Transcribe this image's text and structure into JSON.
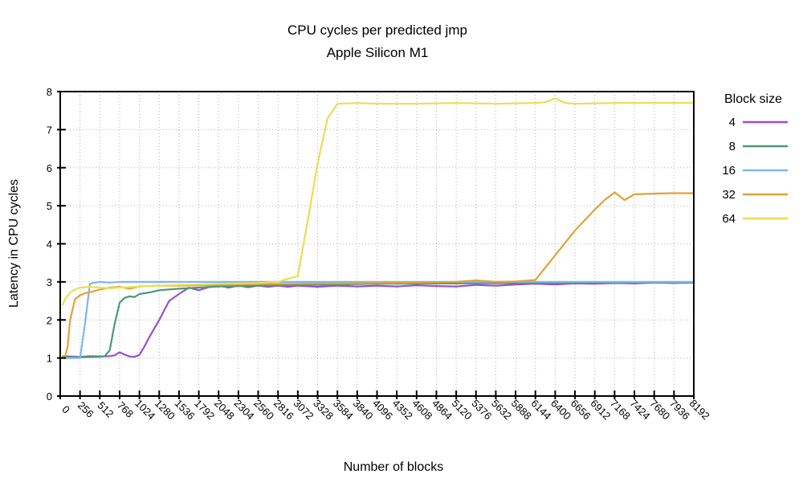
{
  "title": {
    "line1": "CPU cycles per predicted jmp",
    "line2": "Apple Silicon M1"
  },
  "axes": {
    "x": {
      "label": "Number of blocks",
      "min": 0,
      "max": 8192,
      "ticks": [
        0,
        256,
        512,
        768,
        1024,
        1280,
        1536,
        1792,
        2048,
        2304,
        2560,
        2816,
        3072,
        3328,
        3584,
        3840,
        4096,
        4352,
        4608,
        4864,
        5120,
        5376,
        5632,
        5888,
        6144,
        6400,
        6656,
        6912,
        7168,
        7424,
        7680,
        7936,
        8192
      ]
    },
    "y": {
      "label": "Latency in CPU cycles",
      "min": 0,
      "max": 8,
      "ticks": [
        0,
        1,
        2,
        3,
        4,
        5,
        6,
        7,
        8
      ]
    }
  },
  "legend": {
    "title": "Block size",
    "entries": [
      {
        "label": "4",
        "color": "#9a4fd0"
      },
      {
        "label": "8",
        "color": "#479b77"
      },
      {
        "label": "16",
        "color": "#7db7ea"
      },
      {
        "label": "32",
        "color": "#e3a235"
      },
      {
        "label": "64",
        "color": "#eedc55"
      }
    ]
  },
  "colors": {
    "grid": "#b0b0b0",
    "border": "#000000",
    "background": "#ffffff"
  },
  "chart_data": {
    "type": "line",
    "title": "CPU cycles per predicted jmp",
    "subtitle": "Apple Silicon M1",
    "xlabel": "Number of blocks",
    "ylabel": "Latency in CPU cycles",
    "xlim": [
      0,
      8192
    ],
    "ylim": [
      0,
      8
    ],
    "grid": true,
    "legend_position": "outside-right",
    "legend_title": "Block size",
    "series": [
      {
        "name": "4",
        "color": "#9a4fd0",
        "points": [
          [
            32,
            1.05
          ],
          [
            128,
            1.04
          ],
          [
            256,
            1.03
          ],
          [
            384,
            1.05
          ],
          [
            512,
            1.04
          ],
          [
            640,
            1.05
          ],
          [
            704,
            1.07
          ],
          [
            768,
            1.15
          ],
          [
            832,
            1.09
          ],
          [
            896,
            1.04
          ],
          [
            960,
            1.03
          ],
          [
            1024,
            1.08
          ],
          [
            1088,
            1.3
          ],
          [
            1152,
            1.55
          ],
          [
            1280,
            2.0
          ],
          [
            1408,
            2.5
          ],
          [
            1536,
            2.68
          ],
          [
            1664,
            2.85
          ],
          [
            1792,
            2.78
          ],
          [
            1920,
            2.86
          ],
          [
            2048,
            2.9
          ],
          [
            2176,
            2.85
          ],
          [
            2304,
            2.9
          ],
          [
            2432,
            2.86
          ],
          [
            2560,
            2.9
          ],
          [
            2688,
            2.87
          ],
          [
            2816,
            2.9
          ],
          [
            2944,
            2.87
          ],
          [
            3072,
            2.9
          ],
          [
            3328,
            2.87
          ],
          [
            3584,
            2.9
          ],
          [
            3840,
            2.88
          ],
          [
            4096,
            2.9
          ],
          [
            4352,
            2.88
          ],
          [
            4608,
            2.91
          ],
          [
            4864,
            2.89
          ],
          [
            5120,
            2.88
          ],
          [
            5376,
            2.92
          ],
          [
            5632,
            2.9
          ],
          [
            5888,
            2.93
          ],
          [
            6144,
            2.95
          ],
          [
            6400,
            2.93
          ],
          [
            6656,
            2.96
          ],
          [
            6912,
            2.95
          ],
          [
            7168,
            2.97
          ],
          [
            7424,
            2.96
          ],
          [
            7680,
            2.98
          ],
          [
            7936,
            2.97
          ],
          [
            8192,
            2.98
          ]
        ]
      },
      {
        "name": "8",
        "color": "#479b77",
        "points": [
          [
            32,
            1.02
          ],
          [
            256,
            1.02
          ],
          [
            512,
            1.03
          ],
          [
            576,
            1.05
          ],
          [
            640,
            1.2
          ],
          [
            704,
            1.9
          ],
          [
            768,
            2.45
          ],
          [
            832,
            2.58
          ],
          [
            896,
            2.62
          ],
          [
            960,
            2.6
          ],
          [
            1024,
            2.68
          ],
          [
            1152,
            2.72
          ],
          [
            1280,
            2.78
          ],
          [
            1536,
            2.82
          ],
          [
            1792,
            2.85
          ],
          [
            2048,
            2.88
          ],
          [
            2560,
            2.9
          ],
          [
            3072,
            2.92
          ],
          [
            3584,
            2.93
          ],
          [
            4096,
            2.95
          ],
          [
            5120,
            2.96
          ],
          [
            6144,
            2.97
          ],
          [
            7168,
            2.98
          ],
          [
            8192,
            2.98
          ]
        ]
      },
      {
        "name": "16",
        "color": "#7db7ea",
        "points": [
          [
            32,
            1.0
          ],
          [
            128,
            1.0
          ],
          [
            256,
            1.0
          ],
          [
            320,
            1.9
          ],
          [
            384,
            2.95
          ],
          [
            448,
            2.98
          ],
          [
            512,
            3.0
          ],
          [
            640,
            2.98
          ],
          [
            768,
            3.0
          ],
          [
            1024,
            3.0
          ],
          [
            1536,
            3.0
          ],
          [
            2048,
            3.0
          ],
          [
            3072,
            3.0
          ],
          [
            4096,
            3.0
          ],
          [
            5120,
            3.0
          ],
          [
            6144,
            3.0
          ],
          [
            7168,
            3.0
          ],
          [
            8192,
            3.0
          ]
        ]
      },
      {
        "name": "32",
        "color": "#e3a235",
        "points": [
          [
            32,
            1.05
          ],
          [
            64,
            1.05
          ],
          [
            96,
            1.3
          ],
          [
            128,
            2.0
          ],
          [
            192,
            2.55
          ],
          [
            256,
            2.65
          ],
          [
            320,
            2.7
          ],
          [
            384,
            2.73
          ],
          [
            512,
            2.8
          ],
          [
            640,
            2.85
          ],
          [
            768,
            2.87
          ],
          [
            896,
            2.82
          ],
          [
            1024,
            2.88
          ],
          [
            1280,
            2.9
          ],
          [
            1536,
            2.9
          ],
          [
            2048,
            2.92
          ],
          [
            2560,
            2.94
          ],
          [
            3072,
            2.95
          ],
          [
            3584,
            2.96
          ],
          [
            4096,
            2.97
          ],
          [
            4608,
            2.98
          ],
          [
            5120,
            3.0
          ],
          [
            5376,
            3.04
          ],
          [
            5632,
            3.0
          ],
          [
            5888,
            3.01
          ],
          [
            6144,
            3.05
          ],
          [
            6400,
            3.7
          ],
          [
            6656,
            4.35
          ],
          [
            6912,
            4.9
          ],
          [
            7040,
            5.15
          ],
          [
            7168,
            5.35
          ],
          [
            7296,
            5.15
          ],
          [
            7424,
            5.3
          ],
          [
            7680,
            5.32
          ],
          [
            7936,
            5.33
          ],
          [
            8192,
            5.33
          ]
        ]
      },
      {
        "name": "64",
        "color": "#eedc55",
        "points": [
          [
            32,
            2.4
          ],
          [
            64,
            2.55
          ],
          [
            128,
            2.72
          ],
          [
            192,
            2.8
          ],
          [
            256,
            2.85
          ],
          [
            384,
            2.87
          ],
          [
            512,
            2.85
          ],
          [
            640,
            2.83
          ],
          [
            768,
            2.85
          ],
          [
            1024,
            2.88
          ],
          [
            1536,
            2.92
          ],
          [
            2048,
            2.95
          ],
          [
            2560,
            2.97
          ],
          [
            2816,
            3.0
          ],
          [
            2944,
            3.08
          ],
          [
            3072,
            3.15
          ],
          [
            3200,
            4.6
          ],
          [
            3328,
            6.1
          ],
          [
            3456,
            7.3
          ],
          [
            3584,
            7.68
          ],
          [
            3840,
            7.7
          ],
          [
            4096,
            7.68
          ],
          [
            4608,
            7.68
          ],
          [
            5120,
            7.7
          ],
          [
            5632,
            7.68
          ],
          [
            6144,
            7.7
          ],
          [
            6272,
            7.72
          ],
          [
            6400,
            7.82
          ],
          [
            6528,
            7.7
          ],
          [
            6656,
            7.68
          ],
          [
            7168,
            7.7
          ],
          [
            7680,
            7.7
          ],
          [
            8192,
            7.7
          ]
        ]
      }
    ]
  }
}
